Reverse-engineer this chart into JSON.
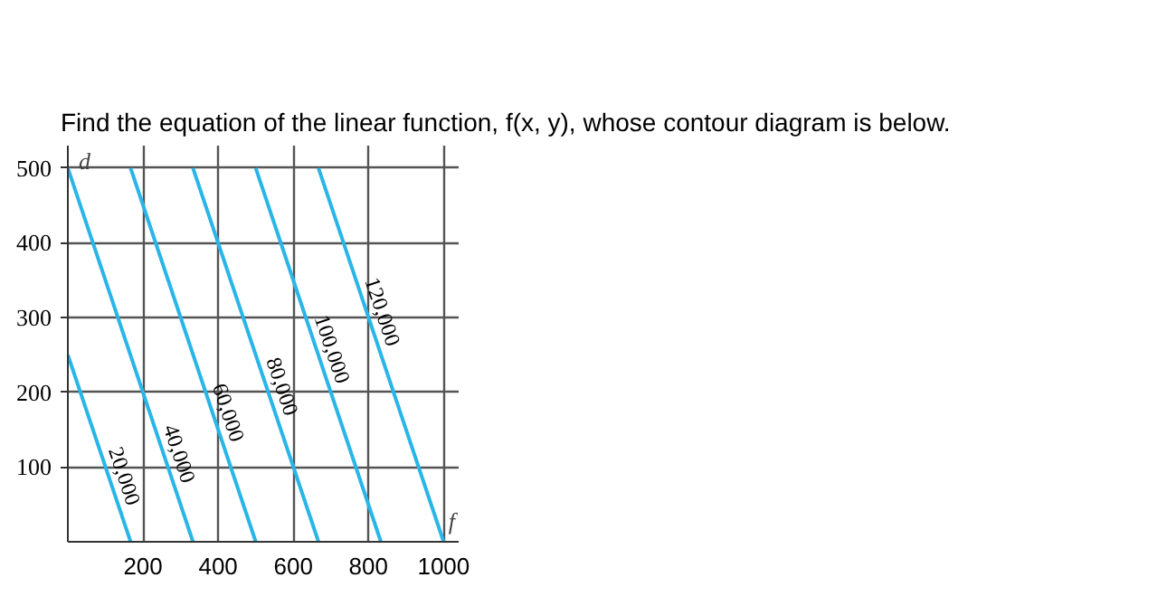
{
  "chart_data": {
    "type": "line",
    "title": "Find the equation of the linear function, f(x, y), whose contour diagram is below.",
    "xlabel": "f",
    "ylabel": "d",
    "xlim": [
      0,
      1040
    ],
    "ylim": [
      0,
      530
    ],
    "xticks": [
      200,
      400,
      600,
      800,
      1000
    ],
    "yticks": [
      100,
      200,
      300,
      400,
      500
    ],
    "grid": true,
    "marker": "none",
    "line_style": "solid",
    "series": [
      {
        "name": "20,000",
        "color": "#29b5e8",
        "x": [
          0,
          167
        ],
        "values": [
          250,
          0
        ]
      },
      {
        "name": "40,000",
        "color": "#29b5e8",
        "x": [
          0,
          333
        ],
        "values": [
          500,
          0
        ]
      },
      {
        "name": "60,000",
        "color": "#29b5e8",
        "x": [
          167,
          500
        ],
        "values": [
          500,
          0
        ]
      },
      {
        "name": "80,000",
        "color": "#29b5e8",
        "x": [
          333,
          667
        ],
        "values": [
          500,
          0
        ]
      },
      {
        "name": "100,000",
        "color": "#29b5e8",
        "x": [
          500,
          833
        ],
        "values": [
          500,
          0
        ]
      },
      {
        "name": "120,000",
        "color": "#29b5e8",
        "x": [
          667,
          1000
        ],
        "values": [
          500,
          0
        ]
      }
    ]
  }
}
